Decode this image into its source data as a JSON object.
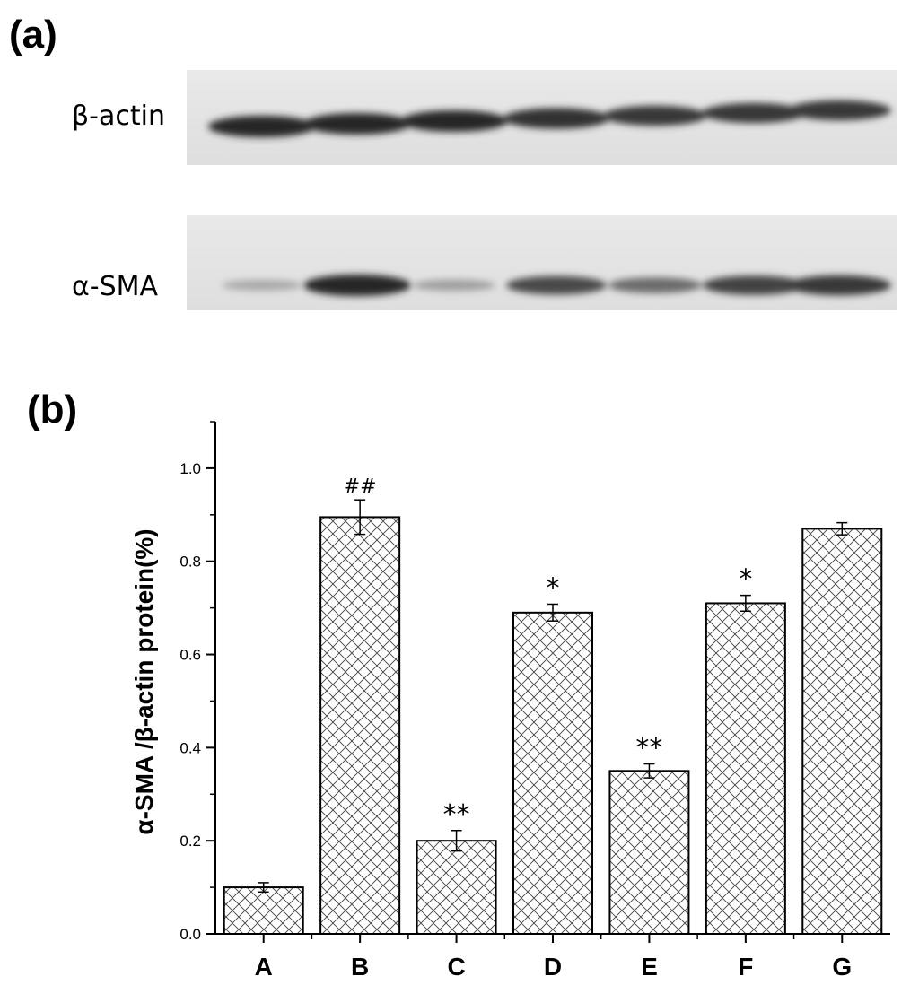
{
  "panel_a": {
    "label": "(a)",
    "blots": [
      {
        "name": "β-actin",
        "intensities": [
          1.0,
          1.0,
          1.0,
          0.95,
          0.9,
          0.9,
          0.9
        ]
      },
      {
        "name": "α-SMA",
        "intensities": [
          0.25,
          1.0,
          0.3,
          0.8,
          0.6,
          0.85,
          0.9
        ]
      }
    ]
  },
  "panel_b": {
    "label": "(b)"
  },
  "chart_data": {
    "type": "bar",
    "title": "",
    "xlabel": "",
    "ylabel": "α-SMA /β-actin protein(%)",
    "categories": [
      "A",
      "B",
      "C",
      "D",
      "E",
      "F",
      "G"
    ],
    "values": [
      0.1,
      0.895,
      0.2,
      0.69,
      0.35,
      0.71,
      0.87
    ],
    "errors": [
      0.01,
      0.037,
      0.022,
      0.018,
      0.015,
      0.017,
      0.013
    ],
    "annotations": [
      "",
      "##",
      "**",
      "*",
      "**",
      "*",
      ""
    ],
    "ylim": [
      0.0,
      1.1
    ],
    "yticks": [
      "0.0",
      "0.2",
      "0.4",
      "0.6",
      "0.8",
      "1.0"
    ],
    "grid": false,
    "fill_pattern": "crosshatch",
    "bar_color": "#000000"
  }
}
